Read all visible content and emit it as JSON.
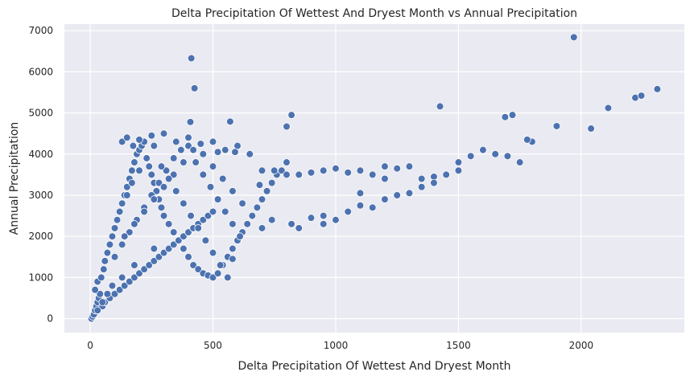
{
  "chart_data": {
    "type": "scatter",
    "title": "Delta Precipitation Of Wettest And Dryest Month vs Annual Precipitation",
    "xlabel": "Delta Precipitation Of Wettest And Dryest Month",
    "ylabel": "Annual Precipitation",
    "xlim": [
      -105,
      2420
    ],
    "ylim": [
      -340,
      7160
    ],
    "xticks": [
      0,
      500,
      1000,
      1500,
      2000
    ],
    "yticks": [
      0,
      1000,
      2000,
      3000,
      4000,
      5000,
      6000,
      7000
    ],
    "grid": true,
    "legend": "none",
    "colors": {
      "points": "#4c72b0",
      "background": "#eaeaf2",
      "grid": "#ffffff"
    },
    "series": [
      {
        "x": [
          5,
          10,
          15,
          20,
          25,
          30,
          35,
          40,
          20,
          30,
          45,
          55,
          60,
          70,
          80,
          90,
          100,
          110,
          120,
          130,
          140,
          150,
          160,
          170,
          180,
          190,
          200,
          210,
          220,
          230,
          240,
          250,
          260,
          270,
          280,
          290,
          300,
          320,
          340,
          360,
          380,
          400,
          420,
          440,
          460,
          480,
          500,
          520,
          540,
          560,
          580,
          600,
          620,
          640,
          660,
          680,
          700,
          720,
          740,
          760,
          780,
          800,
          50,
          60,
          80,
          100,
          120,
          140,
          160,
          180,
          200,
          220,
          240,
          260,
          280,
          300,
          320,
          340,
          360,
          380,
          400,
          420,
          440,
          460,
          480,
          500,
          100,
          130,
          160,
          190,
          220,
          250,
          280,
          310,
          340,
          370,
          400,
          430,
          460,
          490,
          520,
          550,
          580,
          610,
          140,
          180,
          220,
          260,
          300,
          340,
          380,
          420,
          460,
          500,
          540,
          580,
          620,
          660,
          700,
          740,
          150,
          170,
          200,
          230,
          260,
          290,
          320,
          350,
          380,
          410,
          440,
          470,
          500,
          530,
          560,
          130,
          150,
          175,
          200,
          250,
          300,
          350,
          400,
          450,
          500,
          550,
          600,
          650,
          700,
          750,
          800,
          850,
          900,
          950,
          1000,
          1050,
          1100,
          1150,
          1200,
          1250,
          1300,
          1350,
          1400,
          1450,
          1500,
          1550,
          1600,
          1650,
          1700,
          1750,
          1800,
          820,
          850,
          900,
          950,
          1000,
          1050,
          1100,
          1150,
          1200,
          1250,
          1300,
          1350,
          1400,
          1450,
          1500,
          412,
          425,
          408,
          820,
          1425,
          1690,
          1720,
          1780,
          1900,
          1970,
          2040,
          2110,
          2220,
          2245,
          2310,
          570,
          520,
          800,
          590,
          690,
          1200,
          1100,
          950,
          580,
          260,
          180,
          130,
          90,
          70,
          50,
          30
        ],
        "y": [
          0,
          50,
          100,
          200,
          300,
          400,
          500,
          600,
          700,
          900,
          1000,
          1200,
          1400,
          1600,
          1800,
          2000,
          2200,
          2400,
          2600,
          2800,
          3000,
          3200,
          3400,
          3600,
          3800,
          4000,
          4100,
          4200,
          4300,
          3900,
          3700,
          3500,
          3300,
          3100,
          2900,
          2700,
          2500,
          2300,
          2100,
          1900,
          1700,
          1500,
          1300,
          1200,
          1100,
          1050,
          1000,
          1100,
          1300,
          1500,
          1700,
          1900,
          2100,
          2300,
          2500,
          2700,
          2900,
          3100,
          3300,
          3500,
          3600,
          3800,
          300,
          400,
          500,
          600,
          700,
          800,
          900,
          1000,
          1100,
          1200,
          1300,
          1400,
          1500,
          1600,
          1700,
          1800,
          1900,
          2000,
          2100,
          2200,
          2300,
          2400,
          2500,
          2600,
          1500,
          1800,
          2100,
          2400,
          2700,
          3000,
          3300,
          3600,
          3900,
          4100,
          4200,
          3800,
          3500,
          3200,
          2900,
          2600,
          2300,
          2000,
          2000,
          2300,
          2600,
          2900,
          3200,
          3500,
          3800,
          4100,
          4000,
          3700,
          3400,
          3100,
          2800,
          2500,
          2200,
          2400,
          3000,
          3300,
          3600,
          3900,
          4200,
          3700,
          3400,
          3100,
          2800,
          2500,
          2200,
          1900,
          1600,
          1300,
          1000,
          4300,
          4400,
          4200,
          4350,
          4450,
          4500,
          4300,
          4400,
          4250,
          4300,
          4100,
          4200,
          4000,
          3600,
          3600,
          3500,
          3500,
          3550,
          3600,
          3650,
          3550,
          3600,
          3500,
          3700,
          3650,
          3700,
          3400,
          3450,
          3500,
          3800,
          3950,
          4100,
          4000,
          3950,
          3800,
          4300,
          2300,
          2200,
          2450,
          2500,
          2400,
          2600,
          2750,
          2700,
          2900,
          3000,
          3050,
          3200,
          3300,
          3500,
          3600,
          6330,
          5600,
          4780,
          4950,
          5160,
          4900,
          4950,
          4350,
          4680,
          6840,
          4620,
          5120,
          5370,
          5420,
          5580,
          4790,
          4050,
          4670,
          4050,
          3250,
          3400,
          3050,
          2300,
          1450,
          1700,
          1300,
          1000,
          800,
          600,
          400,
          200
        ]
      }
    ]
  }
}
